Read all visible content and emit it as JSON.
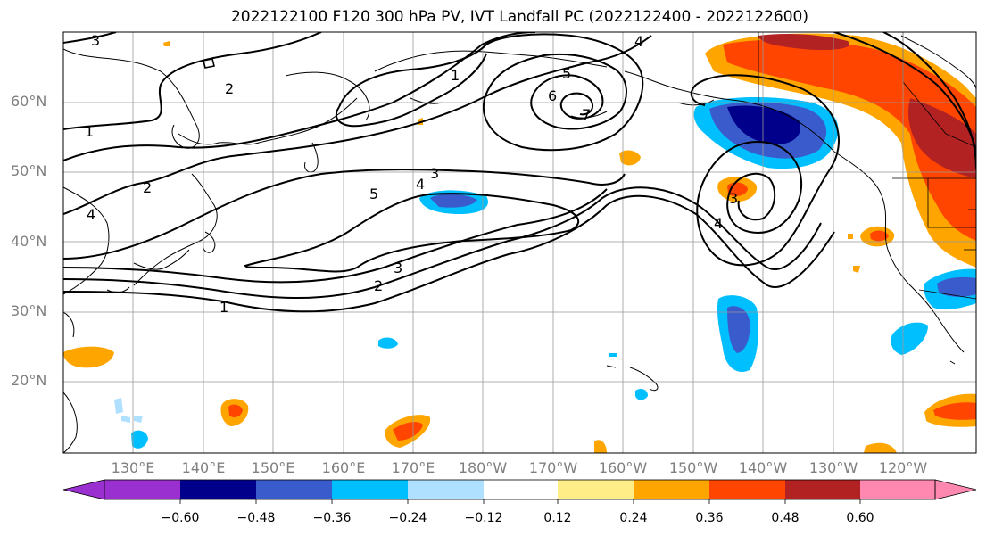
{
  "title": "2022122100 F120 300 hPa PV, IVT Landfall PC (2022122400 - 2022122600)",
  "lat_labels": [
    "60°N",
    "50°N",
    "40°N",
    "30°N",
    "20°N"
  ],
  "lon_labels": [
    "130°E",
    "140°E",
    "150°E",
    "160°E",
    "170°E",
    "180°W",
    "170°W",
    "160°W",
    "150°W",
    "140°W",
    "130°W",
    "120°W"
  ],
  "contour_labels": [
    "3",
    "2",
    "1",
    "2",
    "4",
    "1",
    "5",
    "6",
    "7",
    "4",
    "3",
    "4",
    "5",
    "3",
    "2",
    "1",
    "4",
    "3"
  ],
  "colorbar": {
    "ticks": [
      "−0.60",
      "−0.48",
      "−0.36",
      "−0.24",
      "−0.12",
      "0.12",
      "0.24",
      "0.36",
      "0.48",
      "0.60"
    ],
    "colors": [
      "#9b30d0",
      "#00008b",
      "#3a5bcc",
      "#00bfff",
      "#b0e0ff",
      "#ffffff",
      "#ffee88",
      "#ffa500",
      "#ff4500",
      "#b22222",
      "#ff88b0"
    ]
  },
  "colors": {
    "contour": "#000000",
    "grid": "#999999",
    "label": "#7f7f7f"
  }
}
